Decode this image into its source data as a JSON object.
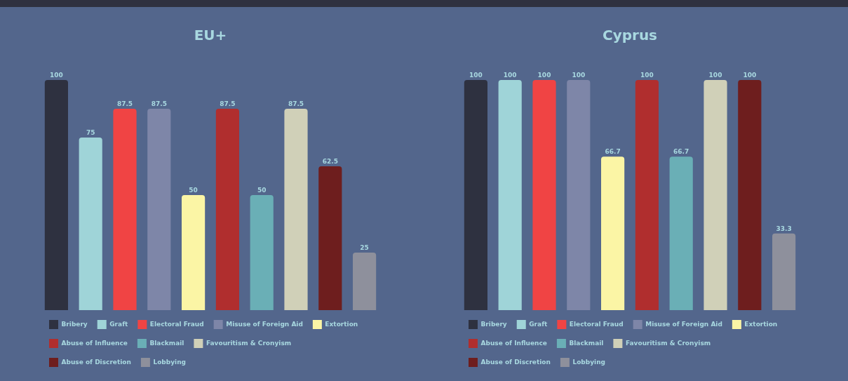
{
  "chart_data": [
    {
      "type": "bar",
      "title": "EU+",
      "categories": [
        null
      ],
      "series": [
        {
          "name": "Bribery",
          "color": "#2e3140",
          "values": [
            100
          ]
        },
        {
          "name": "Graft",
          "color": "#9fd4d8",
          "values": [
            75
          ]
        },
        {
          "name": "Electoral Fraud",
          "color": "#f04444",
          "values": [
            87.5
          ]
        },
        {
          "name": "Misuse of Foreign Aid",
          "color": "#7e86a8",
          "values": [
            87.5
          ]
        },
        {
          "name": "Extortion",
          "color": "#fbf5a5",
          "values": [
            50
          ]
        },
        {
          "name": "Abuse of Influence",
          "color": "#b02e2e",
          "values": [
            87.5
          ]
        },
        {
          "name": "Blackmail",
          "color": "#6aafb6",
          "values": [
            50
          ]
        },
        {
          "name": "Favouritism & Cronyism",
          "color": "#d0d0b8",
          "values": [
            87.5
          ]
        },
        {
          "name": "Abuse of Discretion",
          "color": "#6e1e1e",
          "values": [
            62.5
          ]
        },
        {
          "name": "Lobbying",
          "color": "#8e909c",
          "values": [
            25
          ]
        }
      ],
      "data_labels": true,
      "tick_labels": false,
      "legend": "bottom"
    },
    {
      "type": "bar",
      "title": "Cyprus",
      "categories": [
        null
      ],
      "series": [
        {
          "name": "Bribery",
          "color": "#2e3140",
          "values": [
            100
          ]
        },
        {
          "name": "Graft",
          "color": "#9fd4d8",
          "values": [
            100
          ]
        },
        {
          "name": "Electoral Fraud",
          "color": "#f04444",
          "values": [
            100
          ]
        },
        {
          "name": "Misuse of Foreign Aid",
          "color": "#7e86a8",
          "values": [
            100
          ]
        },
        {
          "name": "Extortion",
          "color": "#fbf5a5",
          "values": [
            66.7
          ]
        },
        {
          "name": "Abuse of Influence",
          "color": "#b02e2e",
          "values": [
            100
          ]
        },
        {
          "name": "Blackmail",
          "color": "#6aafb6",
          "values": [
            66.7
          ]
        },
        {
          "name": "Favouritism & Cronyism",
          "color": "#d0d0b8",
          "values": [
            100
          ]
        },
        {
          "name": "Abuse of Discretion",
          "color": "#6e1e1e",
          "values": [
            100
          ]
        },
        {
          "name": "Lobbying",
          "color": "#8e909c",
          "values": [
            33.3
          ]
        }
      ],
      "data_labels": true,
      "tick_labels": false,
      "legend": "bottom"
    }
  ]
}
